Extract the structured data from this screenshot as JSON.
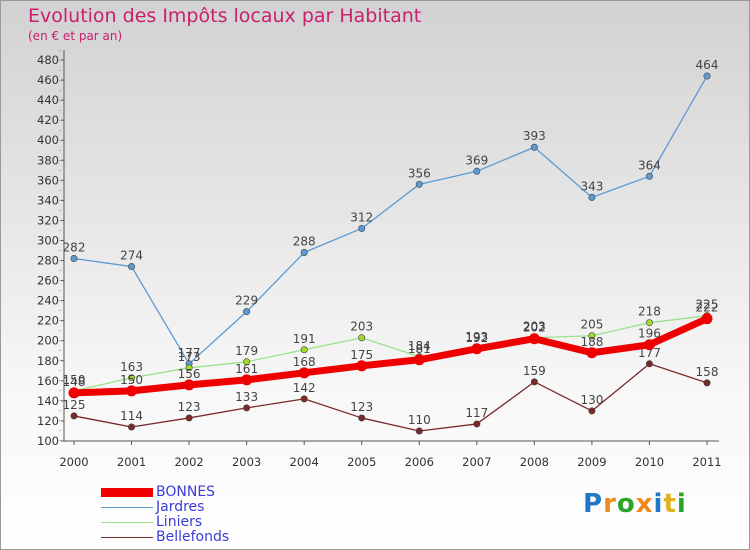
{
  "chart_data": {
    "type": "line",
    "title": "Evolution des Impôts locaux par Habitant",
    "subtitle": "(en € et par an)",
    "categories": [
      "2000",
      "2001",
      "2002",
      "2003",
      "2004",
      "2005",
      "2006",
      "2007",
      "2008",
      "2009",
      "2010",
      "2011"
    ],
    "ylim": [
      100,
      480
    ],
    "ytick_step": 20,
    "grid": false,
    "legend_position": "bottom-left",
    "series": [
      {
        "name": "Jardres",
        "color": "#5b9bd5",
        "values": [
          282,
          274,
          177,
          229,
          288,
          312,
          356,
          369,
          393,
          343,
          364,
          464
        ]
      },
      {
        "name": "Liniers",
        "color": "#98e28c",
        "values": [
          150,
          163,
          173,
          179,
          191,
          203,
          184,
          193,
          203,
          205,
          218,
          225
        ]
      },
      {
        "name": "Bellefonds",
        "color": "#7a2a2a",
        "values": [
          125,
          114,
          123,
          133,
          142,
          123,
          110,
          117,
          159,
          130,
          177,
          158
        ]
      },
      {
        "name": "BONNES",
        "color": "#ee0000",
        "values": [
          148,
          150,
          156,
          161,
          168,
          175,
          181,
          192,
          202,
          188,
          196,
          222
        ]
      }
    ]
  },
  "legend": {
    "items": [
      {
        "label": "BONNES",
        "color": "#ee0000"
      },
      {
        "label": "Jardres",
        "color": "#5b9bd5"
      },
      {
        "label": "Liniers",
        "color": "#98e28c"
      },
      {
        "label": "Bellefonds",
        "color": "#7a2a2a"
      }
    ]
  },
  "logo": {
    "text": "Proxiti",
    "letters": [
      {
        "ch": "P",
        "color": "#1f77c8"
      },
      {
        "ch": "r",
        "color": "#f08a1c"
      },
      {
        "ch": "o",
        "color": "#2aa52a"
      },
      {
        "ch": "x",
        "color": "#f08a1c"
      },
      {
        "ch": "i",
        "color": "#1f77c8"
      },
      {
        "ch": "t",
        "color": "#e2b21c"
      },
      {
        "ch": "i",
        "color": "#2aa52a"
      }
    ]
  }
}
